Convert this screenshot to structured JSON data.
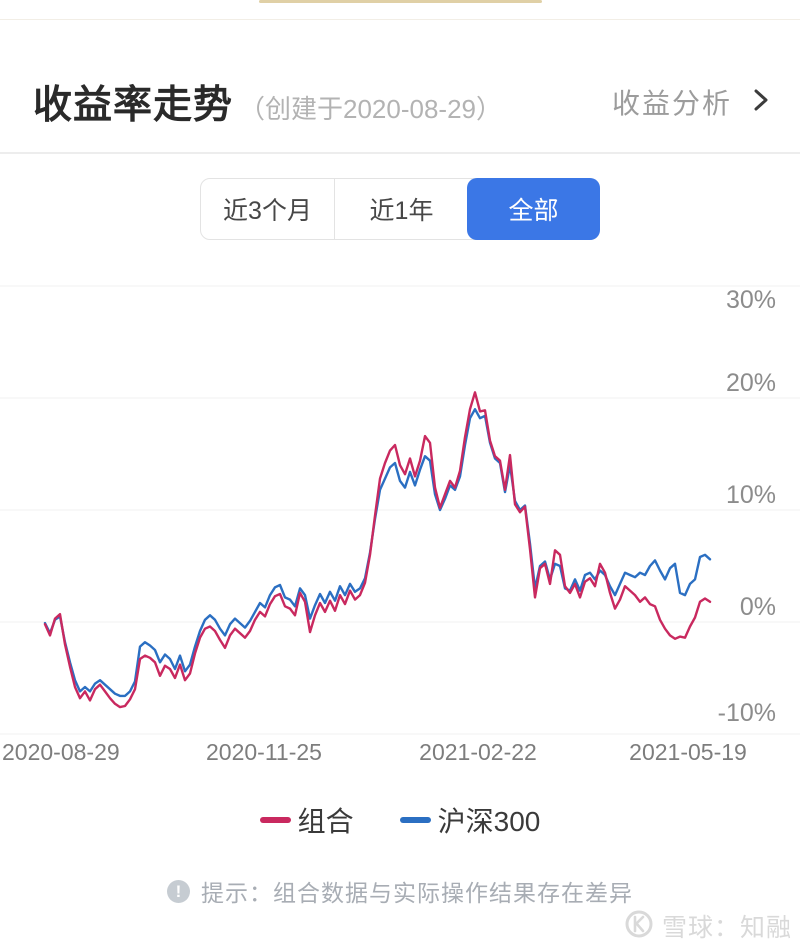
{
  "header": {
    "title": "收益率走势",
    "subtitle": "（创建于2020-08-29）",
    "link_label": "收益分析"
  },
  "tabs": {
    "active_color": "#3b77e6",
    "items": [
      {
        "label": "近3个月",
        "active": false
      },
      {
        "label": "近1年",
        "active": false
      },
      {
        "label": "全部",
        "active": true
      }
    ]
  },
  "chart_data": {
    "type": "line",
    "title": "收益率走势",
    "x_start": "2020-08-29",
    "x_end": "2021-05-19",
    "x_tick_labels": [
      "2020-08-29",
      "2020-11-25",
      "2021-02-22",
      "2021-05-19"
    ],
    "y_tick_labels": [
      "30%",
      "20%",
      "10%",
      "0%",
      "-10%"
    ],
    "y_unit": "%",
    "ylim": [
      -10,
      30
    ],
    "grid": true,
    "legend_position": "bottom",
    "series": [
      {
        "name": "组合",
        "color": "#c9295f",
        "values": [
          -0.2,
          -1.2,
          0.3,
          0.7,
          -2,
          -4,
          -5.8,
          -6.8,
          -6.2,
          -7,
          -6,
          -5.6,
          -6.2,
          -6.8,
          -7.3,
          -7.6,
          -7.5,
          -6.9,
          -6,
          -3.3,
          -3,
          -3.2,
          -3.6,
          -4.8,
          -3.9,
          -4.2,
          -5,
          -3.8,
          -5.2,
          -4.6,
          -2.8,
          -1.4,
          -0.6,
          -0.4,
          -0.8,
          -1.6,
          -2.3,
          -1.2,
          -0.6,
          -1,
          -1.4,
          -0.8,
          0.2,
          0.9,
          0.5,
          1.6,
          2.3,
          2.5,
          1.4,
          1.2,
          0.6,
          2.6,
          1.8,
          -0.9,
          0.6,
          1.7,
          0.9,
          1.9,
          1,
          2.4,
          1.6,
          2.8,
          2,
          2.4,
          3.5,
          6,
          9.5,
          12.8,
          14.2,
          15.3,
          15.8,
          14,
          13.2,
          14.6,
          13,
          14.4,
          16.6,
          16,
          12,
          10.2,
          11.4,
          12.6,
          12,
          13.5,
          16.5,
          19,
          20.5,
          18.8,
          18.9,
          16.2,
          14.8,
          14.4,
          11.8,
          14.9,
          10.5,
          9.8,
          10.3,
          6.5,
          2.2,
          4.8,
          5.2,
          3.4,
          6.4,
          6,
          3.2,
          2.6,
          3.4,
          2.2,
          3.6,
          3.9,
          3.2,
          5.2,
          4.4,
          2.6,
          1.2,
          2,
          3.2,
          2.8,
          2.4,
          1.8,
          2.2,
          1.6,
          1.4,
          0.2,
          -0.6,
          -1.2,
          -1.5,
          -1.3,
          -1.4,
          -0.4,
          0.4,
          1.8,
          2.1,
          1.8
        ]
      },
      {
        "name": "沪深300",
        "color": "#2b6fc2",
        "values": [
          -0.1,
          -1,
          0.2,
          0.5,
          -1.8,
          -3.6,
          -5.2,
          -6.2,
          -5.8,
          -6.2,
          -5.5,
          -5.2,
          -5.6,
          -6,
          -6.4,
          -6.6,
          -6.6,
          -6.2,
          -5.3,
          -2.2,
          -1.8,
          -2.1,
          -2.5,
          -3.6,
          -2.9,
          -3.3,
          -4.2,
          -3,
          -4.4,
          -3.8,
          -2.2,
          -0.8,
          0.2,
          0.6,
          0.2,
          -0.6,
          -1.2,
          -0.2,
          0.3,
          -0.1,
          -0.5,
          0.1,
          0.9,
          1.7,
          1.3,
          2.4,
          3.1,
          3.3,
          2.2,
          2,
          1.4,
          3,
          2.4,
          0.3,
          1.5,
          2.5,
          1.7,
          2.7,
          1.9,
          3.2,
          2.4,
          3.4,
          2.7,
          3,
          3.9,
          6.2,
          9.2,
          11.8,
          12.8,
          13.8,
          14.2,
          12.6,
          12,
          13.4,
          12.2,
          13.6,
          14.8,
          14.4,
          11.4,
          10,
          11,
          12.2,
          11.8,
          13,
          15.8,
          18.2,
          19,
          18.2,
          18.4,
          16,
          14.6,
          14.2,
          11.6,
          14,
          10.8,
          10,
          10.4,
          7,
          3,
          5,
          5.4,
          3.8,
          5.2,
          5,
          3,
          2.8,
          3.8,
          2.8,
          4.2,
          4.4,
          3.8,
          4.6,
          4.2,
          3.2,
          2.4,
          3.4,
          4.4,
          4.2,
          4,
          4.4,
          4.2,
          5,
          5.5,
          4.6,
          3.8,
          4.8,
          5.2,
          2.6,
          2.4,
          3.4,
          3.8,
          5.8,
          6,
          5.6
        ]
      }
    ]
  },
  "footer": {
    "disclaimer": "提示：组合数据与实际操作结果存在差异",
    "disclaimer_icon": "!"
  },
  "watermark": {
    "text": "雪球：知融"
  }
}
